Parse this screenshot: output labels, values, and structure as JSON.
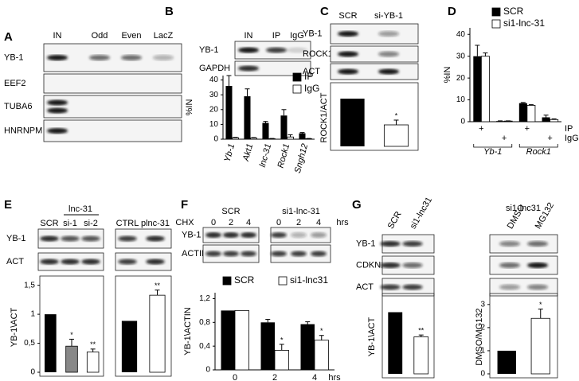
{
  "panels": [
    "A",
    "B",
    "C",
    "D",
    "E",
    "F",
    "G"
  ],
  "blots": [
    {
      "lanes": [
        "IN",
        "Odd",
        "Even",
        "LacZ"
      ],
      "rows": [
        "YB-1",
        "EEF2",
        "TUBA6",
        "HNRNPM"
      ]
    },
    {
      "lanes": [
        "IN",
        "IP",
        "IgG"
      ],
      "rows": [
        "YB-1",
        "GAPDH"
      ]
    },
    {
      "lanes": [
        "SCR",
        "si-YB-1"
      ],
      "rows": [
        "YB-1",
        "ROCK1",
        "ACT"
      ]
    },
    {
      "lanes": [
        "SCR",
        "si-1",
        "si-2",
        "CTRL",
        "plnc-31"
      ],
      "rows": [
        "YB-1",
        "ACT"
      ],
      "headers": [
        "lnc-31"
      ]
    },
    {
      "lanes": [
        "0",
        "2",
        "4",
        "0",
        "2",
        "4"
      ],
      "rows": [
        "YB-1",
        "ACTIN"
      ],
      "headers": [
        "SCR",
        "si1-lnc-31",
        "CHX",
        "hrs"
      ]
    },
    {
      "lanes": [
        "SCR",
        "si1-lnc31"
      ],
      "rows": [
        "YB-1",
        "CDKN1B",
        "ACT"
      ]
    },
    {
      "lanes": [
        "DMSO",
        "MG132"
      ],
      "headers": [
        "si1-lnc31"
      ]
    }
  ],
  "chart_data": [
    {
      "type": "bar",
      "ylabel": "%IN",
      "ylim": [
        0,
        43
      ],
      "yticks": [
        0,
        10,
        20,
        30,
        40
      ],
      "categories": [
        "Yb-1",
        "Akt1",
        "lnc-31",
        "Rock1",
        "Sngh12"
      ],
      "series": [
        {
          "name": "IP",
          "color": "#000000",
          "values": [
            36,
            29,
            11,
            16,
            4
          ],
          "errors": [
            7,
            5,
            1,
            4,
            0.5
          ]
        },
        {
          "name": "IgG",
          "color": "#ffffff",
          "values": [
            1,
            0.8,
            0.3,
            1.5,
            0.3
          ],
          "errors": [
            0.3,
            0.3,
            0.2,
            1.5,
            0.2
          ]
        }
      ]
    },
    {
      "type": "bar",
      "ylabel": "ROCK1/ACT",
      "ylim": [
        0,
        1.2
      ],
      "categories": [
        null,
        null
      ],
      "series": [
        {
          "values": [
            1,
            0.45
          ],
          "errors": [
            null,
            0.1
          ],
          "colors": [
            "#000000",
            "#ffffff"
          ],
          "stars": [
            null,
            "*"
          ]
        }
      ]
    },
    {
      "type": "bar",
      "ylabel": "%IN",
      "ylim": [
        0,
        43
      ],
      "yticks": [
        0,
        10,
        20,
        30,
        40
      ],
      "categories": [
        null,
        null,
        null,
        null
      ],
      "series": [
        {
          "name": "SCR",
          "color": "#000000",
          "values": [
            30,
            0.3,
            8.5,
            2
          ],
          "errors": [
            5,
            0.1,
            0.3,
            1
          ]
        },
        {
          "name": "si1-lnc-31",
          "color": "#ffffff",
          "values": [
            30,
            0.3,
            7.5,
            1
          ],
          "errors": [
            1.5,
            0.1,
            0.3,
            0.3
          ]
        }
      ],
      "rows": [
        {
          "name": "IP",
          "marks": [
            "+",
            null,
            "+",
            null
          ]
        },
        {
          "name": "IgG",
          "marks": [
            null,
            "+",
            null,
            "+"
          ]
        }
      ],
      "groups": [
        "Yb-1",
        "Rock1"
      ]
    },
    {
      "type": "bar",
      "ylabel": "YB-1\\ACT",
      "ylim": [
        0,
        1.55
      ],
      "yticks": [
        0,
        {
          "value": 0.5,
          "label": "0,5"
        },
        1,
        {
          "value": 1.5,
          "label": "1,5"
        }
      ],
      "categories": [
        null,
        null,
        null
      ],
      "series": [
        {
          "values": [
            1,
            0.45,
            0.35
          ],
          "errors": [
            null,
            0.12,
            0.05
          ],
          "colors": [
            "#000000",
            "#888888",
            "#ffffff"
          ],
          "stars": [
            null,
            "*",
            "**"
          ]
        }
      ]
    },
    {
      "type": "bar",
      "ylim": [
        0,
        1.75
      ],
      "categories": [
        null,
        null
      ],
      "series": [
        {
          "values": [
            1,
            1.5
          ],
          "errors": [
            null,
            0.1
          ],
          "colors": [
            "#000000",
            "#ffffff"
          ],
          "stars": [
            null,
            "**"
          ]
        }
      ]
    },
    {
      "type": "bar",
      "ylabel": "YB-1\\ACTIN",
      "xlabel": "hrs",
      "ylim": [
        0,
        1.3
      ],
      "yticks": [
        0,
        {
          "value": 0.4,
          "label": "0,4"
        },
        {
          "value": 0.8,
          "label": "0,8"
        },
        {
          "value": 1.2,
          "label": "1,2"
        }
      ],
      "categories": [
        0,
        2,
        4
      ],
      "series": [
        {
          "name": "SCR",
          "color": "#000000",
          "values": [
            1,
            0.8,
            0.77
          ],
          "errors": [
            null,
            0.05,
            0.04
          ]
        },
        {
          "name": "si1-lnc31",
          "color": "#ffffff",
          "values": [
            1,
            0.33,
            0.5
          ],
          "errors": [
            null,
            0.1,
            0.08
          ],
          "stars": [
            null,
            "*",
            "*"
          ]
        }
      ]
    },
    {
      "type": "bar",
      "ylabel": "YB-1\\ACT",
      "ylim": [
        0,
        1.2
      ],
      "categories": [
        null,
        null
      ],
      "series": [
        {
          "values": [
            1,
            0.6
          ],
          "errors": [
            null,
            0.03
          ],
          "colors": [
            "#000000",
            "#ffffff"
          ],
          "stars": [
            null,
            "**"
          ]
        }
      ]
    },
    {
      "type": "bar",
      "ylabel": "DMSO/MG132",
      "ylim": [
        0,
        3.2
      ],
      "yticks": [
        0,
        1,
        2,
        3
      ],
      "categories": [
        null,
        null
      ],
      "series": [
        {
          "values": [
            1,
            2.4
          ],
          "errors": [
            null,
            0.4
          ],
          "colors": [
            "#000000",
            "#ffffff"
          ],
          "stars": [
            null,
            "*"
          ]
        }
      ]
    }
  ]
}
